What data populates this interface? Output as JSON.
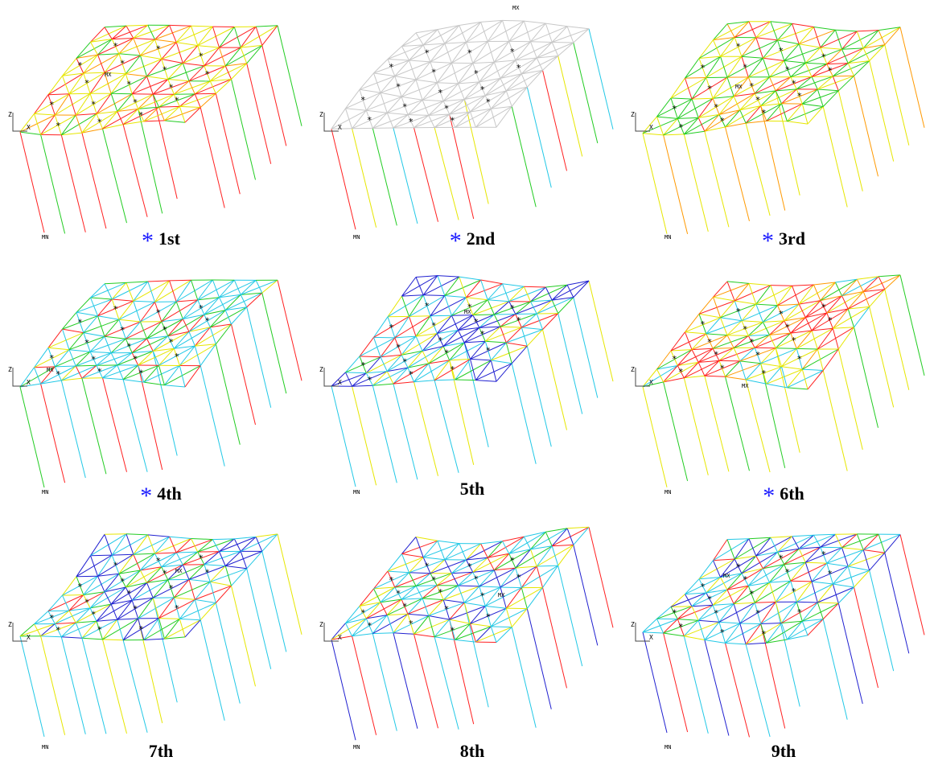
{
  "figure": {
    "panels": [
      {
        "label": "1st",
        "starred": true,
        "scheme": "warm",
        "grey_deck": false
      },
      {
        "label": "2nd",
        "starred": true,
        "scheme": "grey",
        "grey_deck": true
      },
      {
        "label": "3rd",
        "starred": true,
        "scheme": "warm2",
        "grey_deck": false
      },
      {
        "label": "4th",
        "starred": true,
        "scheme": "cyan",
        "grey_deck": false
      },
      {
        "label": "5th",
        "starred": false,
        "scheme": "blue",
        "grey_deck": false
      },
      {
        "label": "6th",
        "starred": true,
        "scheme": "red",
        "grey_deck": false
      },
      {
        "label": "7th",
        "starred": false,
        "scheme": "blue",
        "grey_deck": false
      },
      {
        "label": "8th",
        "starred": false,
        "scheme": "mixed",
        "grey_deck": false
      },
      {
        "label": "9th",
        "starred": false,
        "scheme": "mixed",
        "grey_deck": false
      }
    ],
    "star_glyph": "*",
    "markers": {
      "max": "MX",
      "min": "MN",
      "axis_z": "Z",
      "axis_x": "X"
    },
    "colors": {
      "star_caption": "#1a1aff",
      "red": "#ff2020",
      "orange": "#ff9900",
      "yellow": "#e6e600",
      "green": "#22cc22",
      "cyan": "#22c8e6",
      "blue": "#2020d0",
      "grey": "#c8c8c8"
    }
  }
}
